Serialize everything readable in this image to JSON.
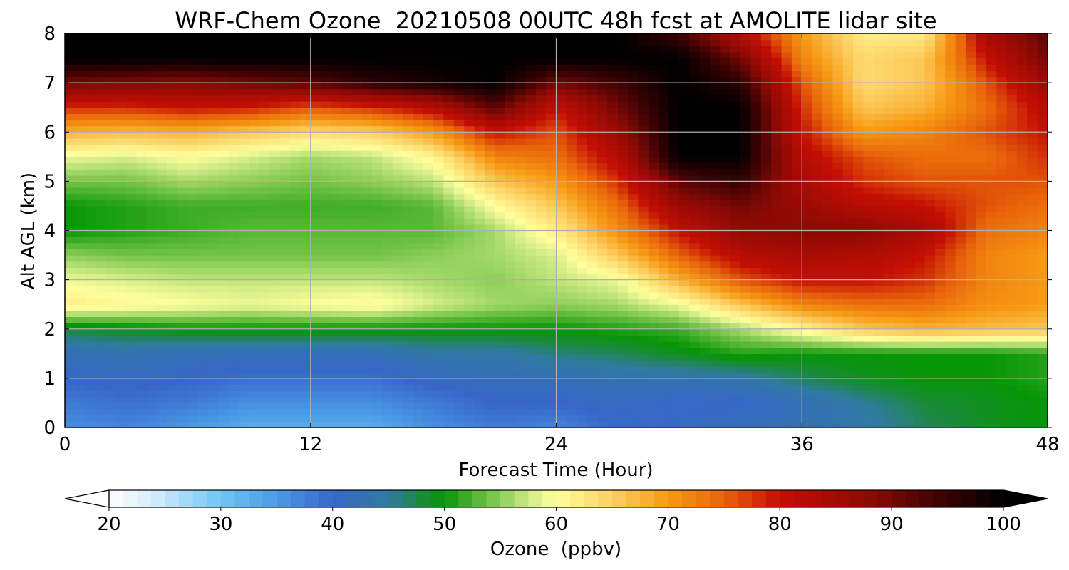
{
  "chart_data": {
    "type": "heatmap",
    "title": "WRF-Chem Ozone  20210508 00UTC 48h fcst at AMOLITE lidar site",
    "xlabel": "Forecast Time (Hour)",
    "ylabel": "Alt AGL (km)",
    "xlim": [
      0,
      48
    ],
    "ylim": [
      0,
      8
    ],
    "xticks": [
      0,
      12,
      24,
      36,
      48
    ],
    "yticks": [
      0,
      1,
      2,
      3,
      4,
      5,
      6,
      7,
      8
    ],
    "grid": true,
    "x_hours": [
      0,
      3,
      6,
      9,
      12,
      15,
      18,
      21,
      24,
      27,
      30,
      33,
      36,
      39,
      42,
      45,
      48
    ],
    "y_km": [
      0,
      0.5,
      1,
      1.5,
      2,
      2.5,
      3,
      3.5,
      4,
      4.5,
      5,
      5.5,
      6,
      6.5,
      7,
      7.5,
      8
    ],
    "z_ppbv": [
      [
        36,
        37,
        35,
        33,
        33,
        33,
        36,
        38,
        37,
        40,
        41,
        42,
        43,
        44,
        47,
        49,
        50
      ],
      [
        38,
        39,
        38,
        36,
        36,
        36,
        38,
        40,
        40,
        41,
        40,
        40,
        42,
        45,
        48,
        49,
        50
      ],
      [
        40,
        41,
        40,
        39,
        39,
        39,
        41,
        42,
        42,
        43,
        43,
        44,
        47,
        49,
        50,
        50,
        51
      ],
      [
        42,
        43,
        42,
        42,
        42,
        42,
        44,
        44,
        46,
        47,
        49,
        51,
        50,
        50,
        50,
        50,
        51
      ],
      [
        48,
        49,
        50,
        50,
        50,
        50,
        50,
        50,
        50,
        51,
        52,
        56,
        61,
        66,
        68,
        67,
        66
      ],
      [
        62,
        61,
        60,
        59,
        60,
        61,
        58,
        56,
        55,
        56,
        59,
        66,
        72,
        74,
        74,
        71,
        70
      ],
      [
        59,
        58,
        57,
        57,
        57,
        57,
        56,
        55,
        57,
        59,
        68,
        76,
        80,
        80,
        78,
        72,
        70
      ],
      [
        55,
        54,
        54,
        54,
        54,
        54,
        55,
        56,
        58,
        66,
        75,
        82,
        84,
        83,
        80,
        72,
        70
      ],
      [
        50,
        51,
        52,
        53,
        53,
        53,
        53,
        56,
        62,
        71,
        80,
        87,
        88,
        88,
        84,
        74,
        72
      ],
      [
        50,
        51,
        52,
        52,
        52,
        52,
        53,
        60,
        66,
        74,
        86,
        90,
        86,
        82,
        80,
        76,
        74
      ],
      [
        54,
        54,
        56,
        55,
        54,
        55,
        57,
        66,
        70,
        78,
        92,
        95,
        84,
        78,
        76,
        76,
        76
      ],
      [
        59,
        58,
        60,
        58,
        56,
        57,
        61,
        72,
        74,
        82,
        100,
        100,
        82,
        76,
        74,
        74,
        78
      ],
      [
        68,
        67,
        68,
        66,
        64,
        65,
        70,
        80,
        76,
        86,
        100,
        100,
        80,
        70,
        72,
        76,
        80
      ],
      [
        78,
        78,
        80,
        79,
        76,
        78,
        82,
        92,
        80,
        90,
        100,
        100,
        78,
        66,
        68,
        74,
        82
      ],
      [
        90,
        89,
        88,
        90,
        92,
        96,
        98,
        100,
        90,
        94,
        100,
        96,
        76,
        64,
        66,
        76,
        86
      ],
      [
        100,
        100,
        100,
        100,
        100,
        100,
        100,
        100,
        100,
        100,
        100,
        90,
        72,
        64,
        66,
        80,
        90
      ],
      [
        100,
        100,
        100,
        100,
        100,
        100,
        100,
        100,
        100,
        100,
        94,
        82,
        70,
        62,
        62,
        84,
        92
      ]
    ],
    "colorbar": {
      "label": "Ozone  (ppbv)",
      "min": 20,
      "max": 100,
      "ticks": [
        20,
        30,
        40,
        50,
        60,
        70,
        80,
        90,
        100
      ],
      "extend": "both",
      "stops": [
        {
          "v": 20,
          "c": "#ffffff"
        },
        {
          "v": 24,
          "c": "#d4ecfb"
        },
        {
          "v": 30,
          "c": "#6ec6f4"
        },
        {
          "v": 35,
          "c": "#4a9ae6"
        },
        {
          "v": 40,
          "c": "#3766c8"
        },
        {
          "v": 45,
          "c": "#2f7aa0"
        },
        {
          "v": 48,
          "c": "#1a8a3a"
        },
        {
          "v": 50,
          "c": "#069606"
        },
        {
          "v": 53,
          "c": "#5ab837"
        },
        {
          "v": 56,
          "c": "#a5d96a"
        },
        {
          "v": 58,
          "c": "#d9ef8b"
        },
        {
          "v": 60,
          "c": "#ffff9c"
        },
        {
          "v": 65,
          "c": "#fdd164"
        },
        {
          "v": 70,
          "c": "#f79a14"
        },
        {
          "v": 75,
          "c": "#e8640a"
        },
        {
          "v": 80,
          "c": "#c40e04"
        },
        {
          "v": 88,
          "c": "#8c0a04"
        },
        {
          "v": 94,
          "c": "#400204"
        },
        {
          "v": 100,
          "c": "#000000"
        }
      ]
    }
  }
}
